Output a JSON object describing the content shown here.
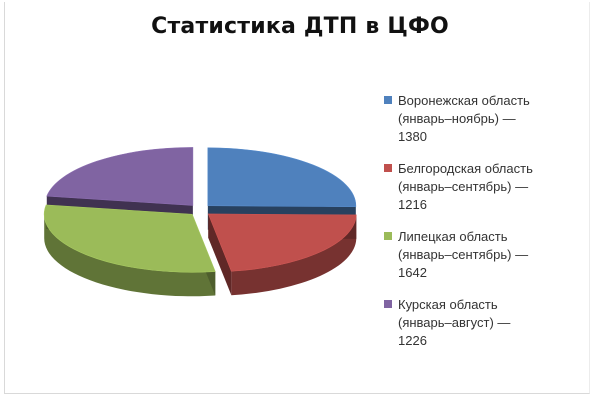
{
  "chart_data": {
    "type": "pie",
    "style": "3d-exploded",
    "title": "Статистика ДТП в ЦФО",
    "legend_position": "right",
    "slices": [
      {
        "label_lines": [
          "Воронежская область",
          "(январь–ноябрь) —",
          "1380"
        ],
        "value": 1380,
        "color": "#4f81bd"
      },
      {
        "label_lines": [
          "Белгородская область",
          "(январь–сентябрь) —",
          "1216"
        ],
        "value": 1216,
        "color": "#c0504d"
      },
      {
        "label_lines": [
          "Липецкая область",
          "(январь–сентябрь) —",
          "1642"
        ],
        "value": 1642,
        "color": "#9bbb59"
      },
      {
        "label_lines": [
          "Курская область",
          "(январь–август) —",
          "1226"
        ],
        "value": 1226,
        "color": "#8064a2"
      }
    ]
  }
}
